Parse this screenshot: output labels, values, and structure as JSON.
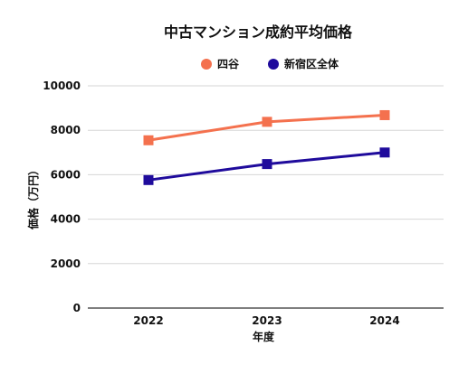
{
  "chart_data": {
    "type": "line",
    "title": "中古マンション成約平均価格",
    "xlabel": "年度",
    "ylabel": "価格（万円）",
    "categories": [
      "2022",
      "2023",
      "2024"
    ],
    "ylim": [
      0,
      10000
    ],
    "yticks": [
      0,
      2000,
      4000,
      6000,
      8000,
      10000
    ],
    "grid": true,
    "legend_position": "top-center",
    "series": [
      {
        "name": "四谷",
        "color": "#f4714e",
        "marker": "square",
        "values": [
          7550,
          8380,
          8680
        ]
      },
      {
        "name": "新宿区全体",
        "color": "#1f0b9c",
        "marker": "square",
        "values": [
          5760,
          6480,
          7000
        ]
      }
    ]
  }
}
